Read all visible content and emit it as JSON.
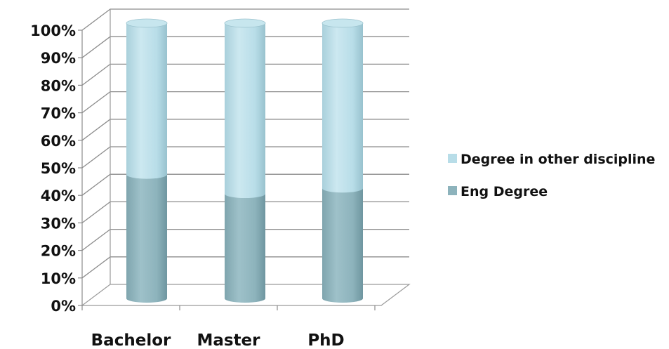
{
  "chart_data": {
    "type": "bar",
    "stacked": true,
    "percent_stacked": true,
    "style": "3d-cylinder",
    "categories": [
      "Bachelor",
      "Master",
      "PhD"
    ],
    "series": [
      {
        "name": "Eng Degree",
        "values": [
          45,
          38,
          40
        ],
        "color": "#8db3bc"
      },
      {
        "name": "Degree in other discipline",
        "values": [
          55,
          62,
          60
        ],
        "color": "#b8dde8"
      }
    ],
    "y_ticks": [
      "0%",
      "10%",
      "20%",
      "30%",
      "40%",
      "50%",
      "60%",
      "70%",
      "80%",
      "90%",
      "100%"
    ],
    "ylim": [
      0,
      100
    ],
    "grid": true,
    "legend_position": "right"
  }
}
